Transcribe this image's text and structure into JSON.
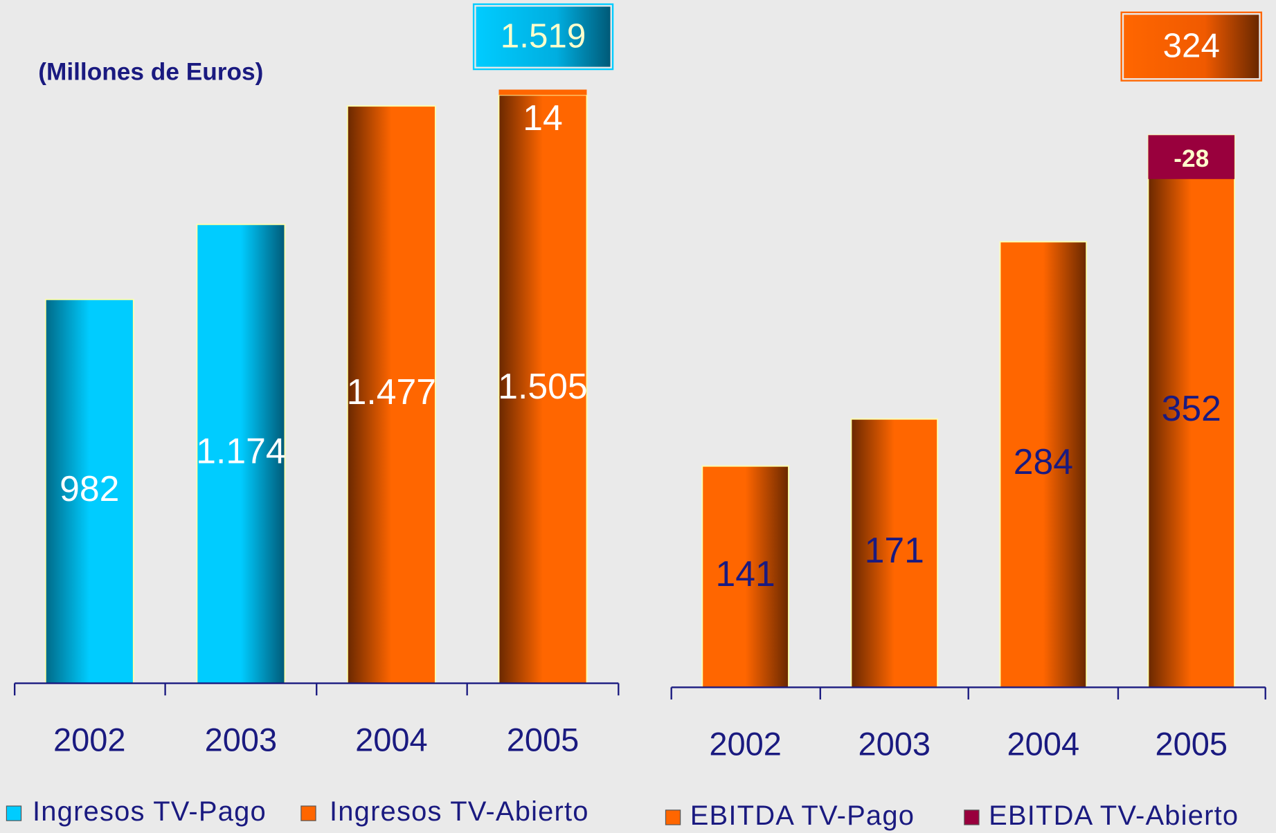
{
  "chart_data": [
    {
      "type": "bar",
      "stacked": true,
      "subtitle": "(Millones de Euros)",
      "categories": [
        "2002",
        "2003",
        "2004",
        "2005"
      ],
      "series": [
        {
          "name": "Ingresos TV-Pago",
          "color": "#00ccff",
          "values": [
            982,
            1174,
            1477,
            1505
          ],
          "value_labels": [
            "982",
            "1.174",
            "1.477",
            "1.505"
          ]
        },
        {
          "name": "Ingresos TV-Abierto",
          "color": "#ff6600",
          "values": [
            null,
            null,
            null,
            14
          ]
        }
      ],
      "total": {
        "value": 1519,
        "label": "1.519"
      }
    },
    {
      "type": "bar",
      "stacked": true,
      "categories": [
        "2002",
        "2003",
        "2004",
        "2005"
      ],
      "series": [
        {
          "name": "EBITDA TV-Pago",
          "color": "#ff6600",
          "values": [
            141,
            171,
            284,
            352
          ]
        },
        {
          "name": "EBITDA TV-Abierto",
          "color": "#99003d",
          "values": [
            null,
            null,
            null,
            -28
          ]
        }
      ],
      "total": {
        "value": 324,
        "label": "324"
      }
    }
  ]
}
